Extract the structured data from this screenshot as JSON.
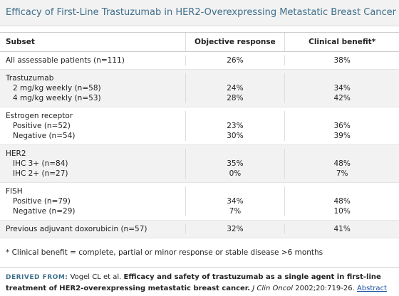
{
  "title": "Efficacy of First-Line Trastuzumab in HER2-Overexpressing Metastatic Breast Cancer",
  "table": {
    "header": [
      "Subset",
      "Objective response",
      "Clinical benefit*"
    ],
    "groups": [
      {
        "rows": [
          [
            "All assessable patients (n=111)",
            "26%",
            "38%"
          ]
        ]
      },
      {
        "title": "Trastuzumab",
        "rows": [
          [
            "2 mg/kg weekly (n=58)",
            "24%",
            "34%"
          ],
          [
            "4 mg/kg weekly (n=53)",
            "28%",
            "42%"
          ]
        ]
      },
      {
        "title": "Estrogen receptor",
        "rows": [
          [
            "Positive (n=52)",
            "23%",
            "36%"
          ],
          [
            "Negative (n=54)",
            "30%",
            "39%"
          ]
        ]
      },
      {
        "title": "HER2",
        "rows": [
          [
            "IHC 3+ (n=84)",
            "35%",
            "48%"
          ],
          [
            "IHC 2+ (n=27)",
            "0%",
            "7%"
          ]
        ]
      },
      {
        "title": "FISH",
        "rows": [
          [
            "Positive (n=79)",
            "34%",
            "48%"
          ],
          [
            "Negative (n=29)",
            "7%",
            "10%"
          ]
        ]
      },
      {
        "rows": [
          [
            "Previous adjuvant doxorubicin (n=57)",
            "32%",
            "41%"
          ]
        ]
      }
    ]
  },
  "footnote": "* Clinical benefit = complete, partial or minor response or stable disease >6 months",
  "source": {
    "label": "DERIVED FROM:",
    "authors": "Vogel CL et al.",
    "article": "Efficacy and safety of trastuzumab as a single agent in first-line treatment of HER2-overexpressing metastatic breast cancer.",
    "journal": "J Clin Oncol",
    "citation": "2002;20:719-26.",
    "link": "Abstract"
  }
}
